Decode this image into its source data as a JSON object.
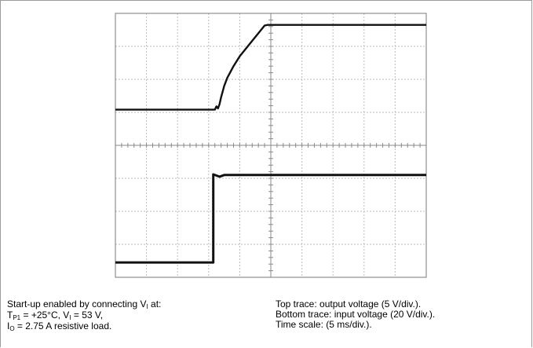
{
  "caption_left": {
    "line1_text": "Start-up enabled by connecting V",
    "line1_sub": "I",
    "line1_end": " at:",
    "line2_a": "T",
    "line2_a_sub": "P1",
    "line2_b": " = +25°C, V",
    "line2_b_sub": "I",
    "line2_c": " = 53 V,",
    "line3_a": "I",
    "line3_a_sub": "O",
    "line3_b": " = 2.75 A resistive load."
  },
  "caption_right": {
    "line1": "Top trace: output voltage (5 V/div.).",
    "line2": "Bottom trace: input voltage (20 V/div.).",
    "line3": "Time scale: (5 ms/div.)."
  },
  "chart_data": {
    "type": "line",
    "grid": true,
    "x_divisions": 10,
    "y_divisions": 8,
    "x_unit": "div",
    "y_unit": "div",
    "xlim": [
      0,
      10
    ],
    "ylim": [
      -4,
      4
    ],
    "series": [
      {
        "x": [
          0,
          3.2,
          3.25,
          3.3,
          3.35,
          3.4,
          3.5,
          3.6,
          3.8,
          4.0,
          4.3,
          4.6,
          4.8,
          4.9,
          10
        ],
        "y": [
          1.08,
          1.08,
          1.18,
          1.12,
          1.25,
          1.45,
          1.8,
          2.05,
          2.4,
          2.7,
          3.05,
          3.4,
          3.63,
          3.65,
          3.65
        ]
      },
      {
        "x": [
          0,
          3.15,
          3.15,
          3.35,
          3.5,
          10
        ],
        "y": [
          -3.55,
          -3.55,
          -0.88,
          -0.95,
          -0.9,
          -0.9
        ]
      }
    ]
  },
  "colors": {
    "trace": "#111111",
    "grid": "#bdbdbd",
    "frame": "#9a9a9a"
  }
}
